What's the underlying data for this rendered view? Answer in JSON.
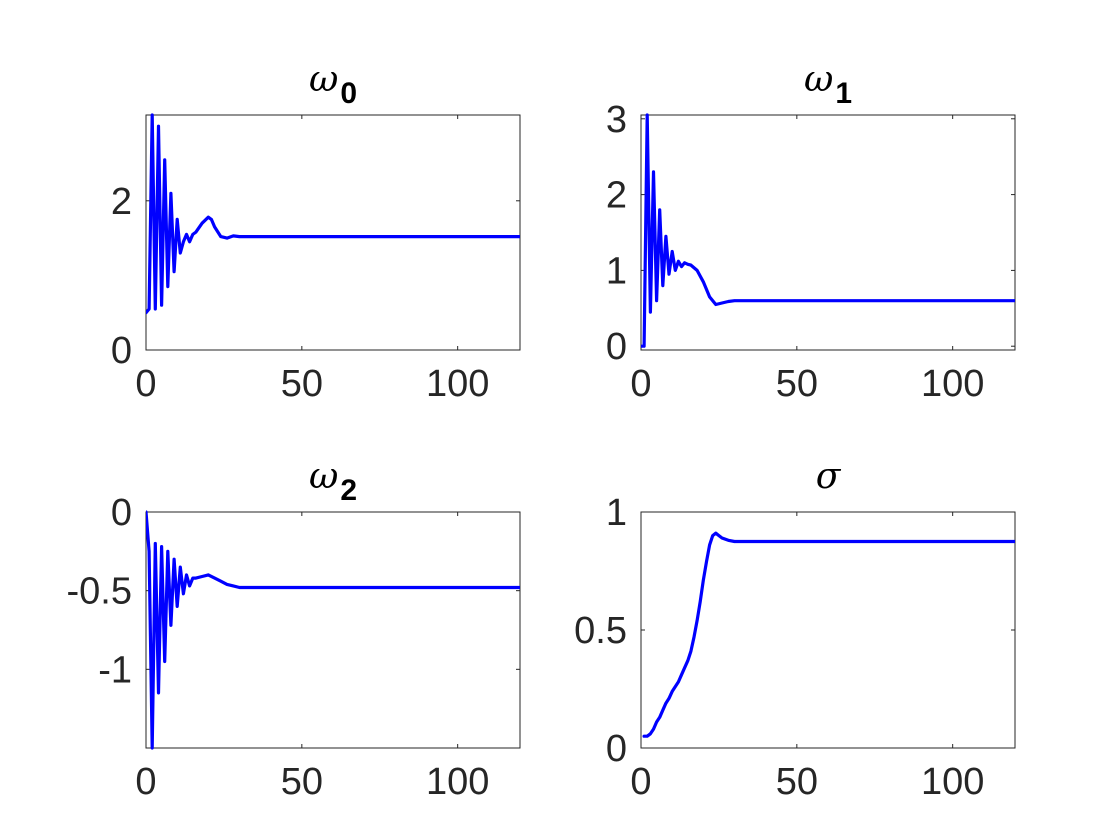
{
  "line_color": "#0000ff",
  "chart_data": [
    {
      "type": "line",
      "title": "ω",
      "title_sub": "0",
      "xlim": [
        0,
        120
      ],
      "ylim": [
        0,
        3.15
      ],
      "xticks": [
        0,
        50,
        100
      ],
      "xtick_labels": [
        "0",
        "50",
        "100"
      ],
      "yticks": [
        0,
        2
      ],
      "ytick_labels": [
        "0",
        "2"
      ],
      "series": [
        {
          "x": [
            0,
            1,
            2,
            3,
            4,
            5,
            6,
            7,
            8,
            9,
            10,
            11,
            12,
            13,
            14,
            15,
            16,
            18,
            20,
            21,
            22,
            24,
            26,
            28,
            30,
            35,
            40,
            60,
            80,
            100,
            120
          ],
          "y": [
            0.5,
            0.55,
            3.15,
            0.55,
            3.0,
            0.6,
            2.55,
            0.85,
            2.1,
            1.05,
            1.75,
            1.3,
            1.45,
            1.55,
            1.45,
            1.55,
            1.58,
            1.7,
            1.78,
            1.75,
            1.65,
            1.52,
            1.5,
            1.53,
            1.52,
            1.52,
            1.52,
            1.52,
            1.52,
            1.52,
            1.52
          ]
        }
      ]
    },
    {
      "type": "line",
      "title": "ω",
      "title_sub": "1",
      "xlim": [
        0,
        120
      ],
      "ylim": [
        -0.05,
        3.05
      ],
      "xticks": [
        0,
        50,
        100
      ],
      "xtick_labels": [
        "0",
        "50",
        "100"
      ],
      "yticks": [
        0,
        1,
        2,
        3
      ],
      "ytick_labels": [
        "0",
        "1",
        "2",
        "3"
      ],
      "series": [
        {
          "x": [
            0,
            1,
            2,
            3,
            4,
            5,
            6,
            7,
            8,
            9,
            10,
            11,
            12,
            13,
            14,
            15,
            16,
            18,
            20,
            22,
            24,
            26,
            28,
            30,
            35,
            40,
            60,
            80,
            100,
            120
          ],
          "y": [
            0.0,
            0.0,
            3.05,
            0.45,
            2.3,
            0.6,
            1.8,
            0.8,
            1.45,
            0.95,
            1.25,
            1.0,
            1.12,
            1.05,
            1.1,
            1.08,
            1.07,
            1.0,
            0.85,
            0.65,
            0.55,
            0.57,
            0.59,
            0.6,
            0.6,
            0.6,
            0.6,
            0.6,
            0.6,
            0.6
          ]
        }
      ]
    },
    {
      "type": "line",
      "title": "ω",
      "title_sub": "2",
      "xlim": [
        0,
        120
      ],
      "ylim": [
        -1.5,
        0
      ],
      "xticks": [
        0,
        50,
        100
      ],
      "xtick_labels": [
        "0",
        "50",
        "100"
      ],
      "yticks": [
        -1,
        -0.5,
        0
      ],
      "ytick_labels": [
        "-1",
        "-0.5",
        "0"
      ],
      "series": [
        {
          "x": [
            0,
            1,
            2,
            3,
            4,
            5,
            6,
            7,
            8,
            9,
            10,
            11,
            12,
            13,
            14,
            15,
            16,
            18,
            20,
            22,
            24,
            26,
            28,
            30,
            35,
            40,
            60,
            80,
            100,
            120
          ],
          "y": [
            0.0,
            -0.25,
            -1.5,
            -0.2,
            -1.15,
            -0.22,
            -0.95,
            -0.25,
            -0.72,
            -0.3,
            -0.6,
            -0.35,
            -0.52,
            -0.4,
            -0.47,
            -0.42,
            -0.42,
            -0.41,
            -0.4,
            -0.42,
            -0.44,
            -0.46,
            -0.47,
            -0.48,
            -0.48,
            -0.48,
            -0.48,
            -0.48,
            -0.48,
            -0.48
          ]
        }
      ]
    },
    {
      "type": "line",
      "title": "σ",
      "title_sub": "",
      "xlim": [
        0,
        120
      ],
      "ylim": [
        0,
        1
      ],
      "xticks": [
        0,
        50,
        100
      ],
      "xtick_labels": [
        "0",
        "50",
        "100"
      ],
      "yticks": [
        0,
        0.5,
        1
      ],
      "ytick_labels": [
        "0",
        "0.5",
        "1"
      ],
      "series": [
        {
          "x": [
            1,
            2,
            3,
            4,
            5,
            6,
            7,
            8,
            9,
            10,
            11,
            12,
            13,
            14,
            15,
            16,
            17,
            18,
            19,
            20,
            21,
            22,
            23,
            24,
            25,
            26,
            28,
            30,
            35,
            40,
            60,
            80,
            100,
            120
          ],
          "y": [
            0.05,
            0.05,
            0.06,
            0.08,
            0.11,
            0.13,
            0.16,
            0.19,
            0.21,
            0.24,
            0.26,
            0.28,
            0.31,
            0.34,
            0.37,
            0.41,
            0.47,
            0.54,
            0.62,
            0.71,
            0.79,
            0.86,
            0.9,
            0.91,
            0.9,
            0.89,
            0.88,
            0.875,
            0.875,
            0.875,
            0.875,
            0.875,
            0.875,
            0.875
          ]
        }
      ]
    }
  ]
}
